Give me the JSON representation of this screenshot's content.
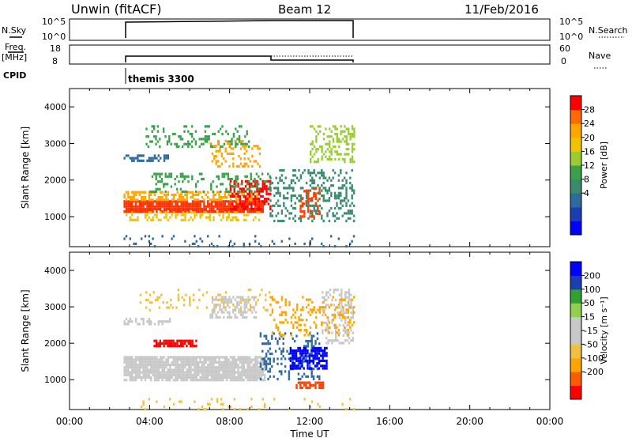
{
  "header": {
    "station": "Unwin (fitACF)",
    "beam": "Beam 12",
    "date": "11/Feb/2016"
  },
  "top_panels": {
    "nsky_label": "N.Sky",
    "nsky_ticks": [
      "10^5",
      "10^0"
    ],
    "nsearch_ticks": [
      "10^5",
      "10^0"
    ],
    "nsearch_label": "N.Search",
    "freq_label": "Freq.",
    "freq_unit": "[MHz]",
    "freq_ticks": [
      "18",
      "8"
    ],
    "nave_ticks": [
      "60",
      "0"
    ],
    "nave_label": "Nave",
    "cpid_label": "CPID",
    "cpid_name": "themis 3300"
  },
  "chart_data": [
    {
      "type": "heatmap",
      "name": "power",
      "ylabel": "Slant Range [km]",
      "ylim": [
        180,
        4500
      ],
      "yticks": [
        1000,
        2000,
        3000,
        4000
      ],
      "xlim": [
        0,
        24
      ],
      "colorbar": {
        "label": "Power [dB]",
        "ticks": [
          "28",
          "24",
          "20",
          "16",
          "12",
          "8",
          "4"
        ],
        "colors": [
          "#0000ff",
          "#1c3fb0",
          "#2e6b9c",
          "#3a8a6e",
          "#3aa14a",
          "#9acd32",
          "#f2c200",
          "#ffa500",
          "#ff6a00",
          "#ff0000"
        ]
      },
      "regions": [
        {
          "t0": 2.7,
          "t1": 9.7,
          "r0": 1150,
          "r1": 1450,
          "color": "#ff3000",
          "density": 0.9
        },
        {
          "t0": 2.7,
          "t1": 9.5,
          "r0": 1450,
          "r1": 1700,
          "color": "#ffa500",
          "density": 0.55
        },
        {
          "t0": 2.8,
          "t1": 9.6,
          "r0": 900,
          "r1": 1150,
          "color": "#f2c200",
          "density": 0.3
        },
        {
          "t0": 8.0,
          "t1": 10.0,
          "r0": 1200,
          "r1": 2000,
          "color": "#ff0000",
          "density": 0.5
        },
        {
          "t0": 4.0,
          "t1": 10.0,
          "r0": 1700,
          "r1": 2200,
          "color": "#3aa14a",
          "density": 0.25
        },
        {
          "t0": 3.8,
          "t1": 9.0,
          "r0": 2900,
          "r1": 3500,
          "color": "#3aa14a",
          "density": 0.25
        },
        {
          "t0": 2.7,
          "t1": 5.0,
          "r0": 2550,
          "r1": 2700,
          "color": "#2e6b9c",
          "density": 0.5
        },
        {
          "t0": 7.0,
          "t1": 9.5,
          "r0": 2400,
          "r1": 3100,
          "color": "#ffa500",
          "density": 0.3
        },
        {
          "t0": 10.0,
          "t1": 14.2,
          "r0": 900,
          "r1": 2300,
          "color": "#3a8a6e",
          "density": 0.3
        },
        {
          "t0": 12.0,
          "t1": 14.2,
          "r0": 2500,
          "r1": 3500,
          "color": "#9acd32",
          "density": 0.35
        },
        {
          "t0": 11.5,
          "t1": 12.5,
          "r0": 1000,
          "r1": 1800,
          "color": "#ff4000",
          "density": 0.4
        },
        {
          "t0": 2.7,
          "t1": 14.2,
          "r0": 200,
          "r1": 500,
          "color": "#2e6b9c",
          "density": 0.08
        }
      ]
    },
    {
      "type": "heatmap",
      "name": "velocity",
      "ylabel": "Slant Range [km]",
      "ylim": [
        180,
        4500
      ],
      "yticks": [
        1000,
        2000,
        3000,
        4000
      ],
      "xlim": [
        0,
        24
      ],
      "xticks": [
        "00:00",
        "04:00",
        "08:00",
        "12:00",
        "16:00",
        "20:00",
        "00:00"
      ],
      "xlabel": "Time UT",
      "colorbar": {
        "label": "Velocity [m s⁻¹]",
        "ticks": [
          "200",
          "100",
          "50",
          "15",
          "-15",
          "-50",
          "-100",
          "-200"
        ],
        "colors": [
          "#ff0000",
          "#ff5a00",
          "#ffa500",
          "#f0c040",
          "#c8c8c8",
          "#c8c8c8",
          "#90d050",
          "#30a030",
          "#1c3fb0",
          "#0000ff"
        ]
      },
      "regions": [
        {
          "t0": 2.7,
          "t1": 9.8,
          "r0": 1000,
          "r1": 1650,
          "color": "#c8c8c8",
          "density": 0.9
        },
        {
          "t0": 4.2,
          "t1": 6.3,
          "r0": 1900,
          "r1": 2100,
          "color": "#ff0000",
          "density": 0.85
        },
        {
          "t0": 9.5,
          "t1": 12.5,
          "r0": 1000,
          "r1": 2300,
          "color": "#2e6b9c",
          "density": 0.25
        },
        {
          "t0": 11.0,
          "t1": 12.8,
          "r0": 1300,
          "r1": 1900,
          "color": "#0000ff",
          "density": 0.7
        },
        {
          "t0": 11.3,
          "t1": 12.7,
          "r0": 750,
          "r1": 950,
          "color": "#ff4000",
          "density": 0.7
        },
        {
          "t0": 12.6,
          "t1": 14.2,
          "r0": 2000,
          "r1": 3500,
          "color": "#c8c8c8",
          "density": 0.35
        },
        {
          "t0": 2.7,
          "t1": 5.0,
          "r0": 2500,
          "r1": 2700,
          "color": "#c8c8c8",
          "density": 0.5
        },
        {
          "t0": 7.0,
          "t1": 9.3,
          "r0": 2700,
          "r1": 3300,
          "color": "#c8c8c8",
          "density": 0.45
        },
        {
          "t0": 3.5,
          "t1": 10.0,
          "r0": 2900,
          "r1": 3500,
          "color": "#f0c040",
          "density": 0.15
        },
        {
          "t0": 2.7,
          "t1": 14.2,
          "r0": 200,
          "r1": 500,
          "color": "#f0c040",
          "density": 0.08
        },
        {
          "t0": 10.0,
          "t1": 14.2,
          "r0": 2200,
          "r1": 3300,
          "color": "#ffa500",
          "density": 0.2
        }
      ]
    }
  ]
}
